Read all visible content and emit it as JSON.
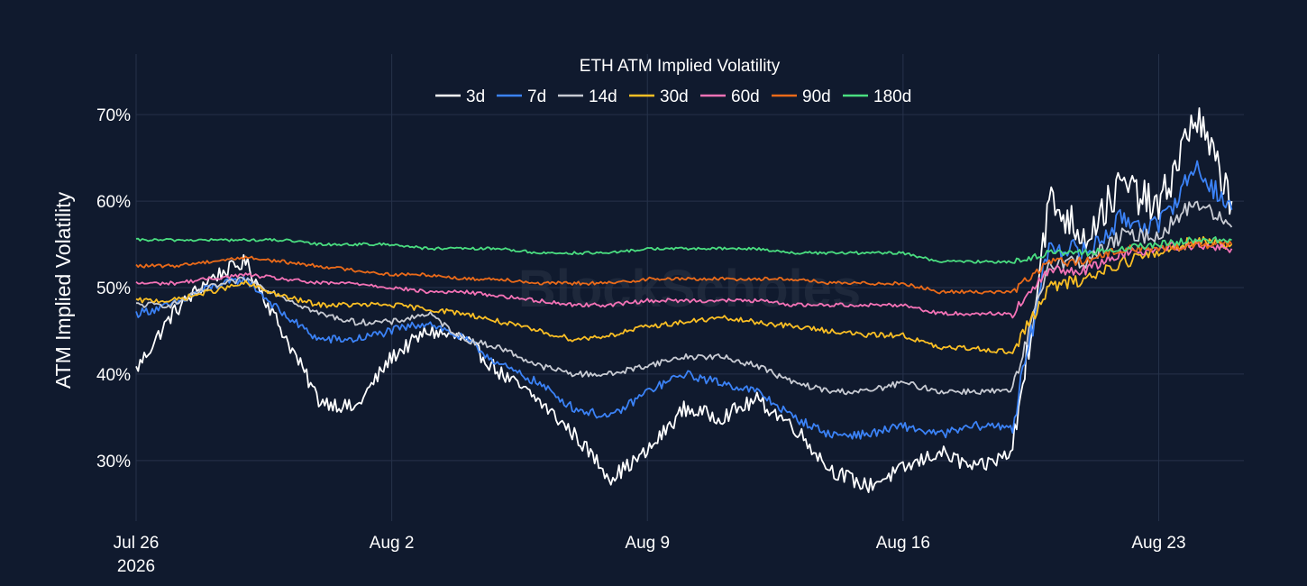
{
  "watermark": "BlockScholes",
  "chart_data": {
    "type": "line",
    "title": "ETH ATM Implied Volatility",
    "xlabel": "",
    "ylabel": "ATM Implied Volatility",
    "y_unit": "%",
    "ylim": [
      23,
      77
    ],
    "yticks": [
      30,
      40,
      50,
      60,
      70
    ],
    "xlim": [
      "2026-07-26",
      "2026-08-25 08:00"
    ],
    "xticks": [
      {
        "date": "2026-07-26",
        "label": "Jul 26",
        "sublabel": "2026"
      },
      {
        "date": "2026-08-02",
        "label": "Aug 2"
      },
      {
        "date": "2026-08-09",
        "label": "Aug 9"
      },
      {
        "date": "2026-08-16",
        "label": "Aug 16"
      },
      {
        "date": "2026-08-23",
        "label": "Aug 23"
      }
    ],
    "grid": true,
    "legend_position": "top-center",
    "x": [
      "2026-07-26",
      "2026-07-27",
      "2026-07-28",
      "2026-07-29",
      "2026-07-30",
      "2026-07-31",
      "2026-08-01",
      "2026-08-02",
      "2026-08-03",
      "2026-08-04",
      "2026-08-05",
      "2026-08-06",
      "2026-08-07",
      "2026-08-08",
      "2026-08-09",
      "2026-08-10",
      "2026-08-11",
      "2026-08-12",
      "2026-08-13",
      "2026-08-14",
      "2026-08-15",
      "2026-08-16",
      "2026-08-17",
      "2026-08-18",
      "2026-08-19",
      "2026-08-20",
      "2026-08-21",
      "2026-08-22",
      "2026-08-23",
      "2026-08-24",
      "2026-08-25"
    ],
    "series": [
      {
        "name": "3d",
        "color": "#ffffff",
        "values": [
          40.5,
          47,
          51,
          53,
          45,
          37,
          36,
          42,
          45,
          44,
          40,
          37,
          33,
          28,
          31,
          36,
          35,
          37,
          34,
          29,
          27,
          29,
          31,
          29,
          31,
          60,
          56,
          62,
          59,
          70,
          60
        ]
      },
      {
        "name": "7d",
        "color": "#3b82f6",
        "values": [
          47,
          48,
          50,
          51,
          47,
          44,
          44,
          45,
          46,
          44,
          41,
          39,
          36,
          35,
          38,
          40,
          39,
          38,
          35,
          33,
          33,
          34,
          33,
          34,
          34,
          55,
          54,
          58,
          57,
          64,
          59
        ]
      },
      {
        "name": "14d",
        "color": "#c8cbd3",
        "values": [
          48,
          48,
          50,
          51,
          49,
          47,
          46,
          46,
          47,
          44,
          43,
          41,
          40,
          40,
          41,
          42,
          42,
          41,
          39,
          38,
          38,
          39,
          38,
          38,
          38,
          53,
          53,
          56,
          56,
          60,
          57
        ]
      },
      {
        "name": "30d",
        "color": "#fbbf24",
        "values": [
          48.5,
          48.5,
          49.5,
          50.5,
          49,
          48,
          48,
          48,
          47.5,
          47,
          46,
          45,
          44,
          44.5,
          45.5,
          46,
          46.5,
          46,
          45.5,
          45,
          44.5,
          44.5,
          43,
          43,
          42.5,
          50,
          51,
          53,
          54,
          55.5,
          55
        ]
      },
      {
        "name": "60d",
        "color": "#f472b6",
        "values": [
          50.5,
          50.5,
          51,
          51.5,
          51,
          50.5,
          50.5,
          50,
          49.5,
          49.5,
          49,
          48.5,
          48,
          48,
          48.5,
          48.5,
          48.5,
          48.5,
          48,
          48,
          48,
          48,
          47,
          47,
          47,
          52,
          52,
          54,
          54.5,
          55,
          54.5
        ]
      },
      {
        "name": "90d",
        "color": "#ea6a19",
        "values": [
          52.5,
          52.5,
          53,
          53.5,
          53,
          52.5,
          52,
          51.5,
          51.5,
          51,
          51,
          50.5,
          50.5,
          50.5,
          51,
          51,
          51,
          51,
          51,
          50.5,
          50.5,
          50.5,
          49.5,
          49.5,
          49.5,
          53,
          53,
          54.5,
          54.5,
          55,
          55
        ]
      },
      {
        "name": "180d",
        "color": "#4ade80",
        "values": [
          55.5,
          55.5,
          55.5,
          55.5,
          55.5,
          55,
          55,
          55,
          54.5,
          54.5,
          54.5,
          54,
          54,
          54,
          54.5,
          54.5,
          54.5,
          54.5,
          54,
          54,
          54,
          54,
          53,
          53,
          53,
          54,
          54,
          54.5,
          55,
          55.5,
          55.5
        ]
      }
    ]
  }
}
